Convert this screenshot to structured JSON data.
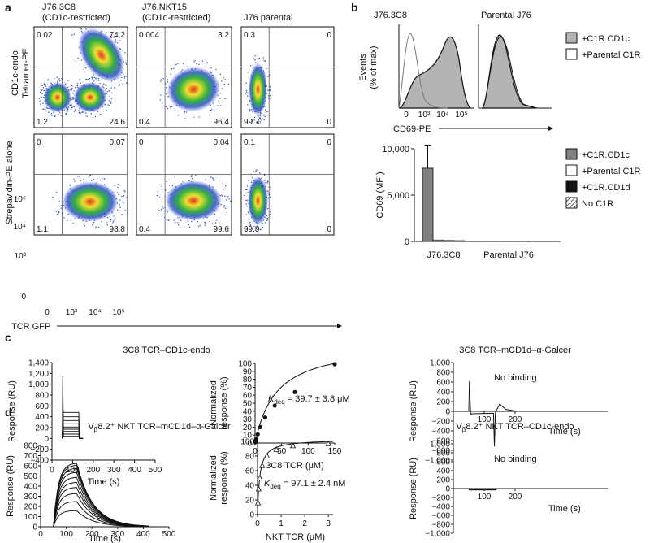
{
  "panels": {
    "a": {
      "letter": "a",
      "col_titles": [
        "J76.3C8",
        "(CD1c-restricted)",
        "J76.NKT15",
        "(CD1d-restricted)",
        "J76 parental"
      ],
      "row_labels": [
        "CD1c-endo",
        "Tetramer-PE",
        "Strepavidin-PE alone"
      ],
      "x_label": "TCR GFP",
      "quadrants": [
        {
          "ul": "0.02",
          "ur": "74.2",
          "ll": "1.2",
          "lr": "24.6"
        },
        {
          "ul": "0.004",
          "ur": "3.2",
          "ll": "0.4",
          "lr": "96.4"
        },
        {
          "ul": "0.3",
          "ur": "0",
          "ll": "99.7",
          "lr": "0"
        },
        {
          "ul": "0",
          "ur": "0.07",
          "ll": "1.1",
          "lr": "98.8"
        },
        {
          "ul": "0",
          "ur": "0.04",
          "ll": "0.4",
          "lr": "99.6"
        },
        {
          "ul": "0.1",
          "ur": "0",
          "ll": "99.9",
          "lr": "0"
        }
      ],
      "y_ticks": [
        "10⁵",
        "10⁴",
        "10³",
        "0"
      ],
      "x_ticks": [
        "0",
        "10³",
        "10⁴",
        "10⁵"
      ]
    },
    "b": {
      "letter": "b",
      "hist_titles": [
        "J76.3C8",
        "Parental J76"
      ],
      "hist_ylabel_1": "Events",
      "hist_ylabel_2": "(% of max)",
      "hist_xlabel": "CD69-PE",
      "hist_x_ticks": [
        "0",
        "10³",
        "10⁴",
        "10⁵"
      ],
      "hist_legend": [
        "+C1R.CD1c",
        "+Parental C1R"
      ],
      "bar_legend": [
        "+C1R.CD1c",
        "+Parental C1R",
        "+C1R.CD1d",
        "No C1R"
      ],
      "bar_ylabel": "CD69 (MFI)"
    },
    "c": {
      "letter": "c",
      "title_left": "3C8 TCR–CD1c-endo",
      "title_right": "3C8 TCR–mCD1d–α-Galcer",
      "no_binding": "No binding",
      "kd_label_main": "K",
      "kd_label_sub": "deq",
      "kd_value": " = 39.7 ± 3.8 μM"
    },
    "d": {
      "letter": "d",
      "title_left_pre": "V",
      "title_left_sub": "β",
      "title_left_post": "8.2⁺ NKT TCR–mCD1d–α-Galcer",
      "title_right_post": "8.2⁺ NKT TCR–CD1c-endo",
      "no_binding": "No binding",
      "kd_label_main": "K",
      "kd_label_sub": "deq",
      "kd_value": " = 97.1 ± 2.4 nM"
    }
  },
  "colors": {
    "bar_fill": "#808080",
    "hist_gray": "#b4b4b4",
    "density_low": "#3050c8",
    "density_mid": "#30b040",
    "density_high": "#f0e030",
    "density_peak": "#e03020"
  },
  "chart_data": [
    {
      "id": "b-bar",
      "type": "bar",
      "title": "",
      "ylabel": "CD69 (MFI)",
      "ylim": [
        0,
        10000
      ],
      "y_ticks": [
        0,
        5000,
        10000
      ],
      "y_tick_labels": [
        "0",
        "5,000",
        "10,000"
      ],
      "groups": [
        "J76.3C8",
        "Parental J76"
      ],
      "series": [
        {
          "name": "+C1R.CD1c",
          "values": [
            7900,
            50
          ]
        },
        {
          "name": "+Parental C1R",
          "values": [
            150,
            50
          ]
        },
        {
          "name": "+C1R.CD1d",
          "values": [
            100,
            50
          ]
        },
        {
          "name": "No C1R",
          "values": [
            80,
            50
          ]
        }
      ],
      "error": [
        2500,
        0
      ]
    },
    {
      "id": "c-sensorgram",
      "type": "line",
      "xlabel": "Time (s)",
      "ylabel": "Response (RU)",
      "xlim": [
        0,
        500
      ],
      "ylim": [
        -400,
        1400
      ],
      "x_ticks": [
        0,
        100,
        200,
        300,
        400,
        500
      ],
      "y_ticks": [
        -400,
        -200,
        0,
        200,
        400,
        600,
        800,
        1000,
        1200,
        1400
      ],
      "y_tick_labels": [
        "−400",
        "−200",
        "0",
        "200",
        "400",
        "600",
        "800",
        "1,000",
        "1,200",
        "1,400"
      ],
      "injection": [
        50,
        130
      ],
      "plateaus": [
        40,
        80,
        130,
        170,
        210,
        270,
        330,
        400,
        480
      ],
      "spike": 1150
    },
    {
      "id": "c-fit",
      "type": "scatter",
      "xlabel": "3C8 TCR (μM)",
      "ylabel": "Normalized response (%)",
      "xlim": [
        0,
        150
      ],
      "ylim": [
        0,
        100
      ],
      "x_ticks": [
        0,
        50,
        100,
        150
      ],
      "y_ticks": [
        0,
        10,
        20,
        30,
        40,
        50,
        60,
        70,
        80,
        90,
        100
      ],
      "x": [
        0.5,
        1,
        2,
        5,
        10,
        19,
        37,
        75,
        150
      ],
      "y": [
        1,
        3,
        5,
        11,
        20,
        32,
        47,
        64,
        99
      ],
      "kd": 39.7
    },
    {
      "id": "c-nobind",
      "type": "line",
      "xlabel": "Time (s)",
      "ylabel": "Response (RU)",
      "xlim": [
        0,
        500
      ],
      "ylim": [
        -1000,
        1000
      ],
      "x_ticks": [
        100,
        200
      ],
      "y_ticks": [
        -1000,
        -800,
        -600,
        -400,
        -200,
        0,
        200,
        400,
        600,
        800,
        1000
      ],
      "y_tick_labels": [
        "−1,000",
        "−800",
        "−600",
        "−400",
        "−200",
        "0",
        "200",
        "400",
        "600",
        "800",
        "1,000"
      ]
    },
    {
      "id": "d-sensorgram",
      "type": "line",
      "xlabel": "Time (s)",
      "ylabel": "Response (RU)",
      "xlim": [
        0,
        500
      ],
      "ylim": [
        0,
        800
      ],
      "x_ticks": [
        0,
        100,
        200,
        300,
        400,
        500
      ],
      "y_ticks": [
        0,
        100,
        200,
        300,
        400,
        500,
        600,
        700,
        800
      ],
      "injection": [
        50,
        140
      ],
      "plateaus": [
        160,
        250,
        330,
        390,
        440,
        490,
        540,
        580,
        610,
        630
      ]
    },
    {
      "id": "d-fit",
      "type": "scatter",
      "xlabel": "NKT TCR (μM)",
      "ylabel": "Normalized response (%)",
      "xlim": [
        0,
        3.2
      ],
      "ylim": [
        0,
        100
      ],
      "x_ticks": [
        0,
        1,
        2,
        3
      ],
      "y_ticks": [
        0,
        20,
        40,
        60,
        80,
        100
      ],
      "x": [
        0.02,
        0.05,
        0.1,
        0.2,
        0.4,
        0.8,
        1.5,
        3.0
      ],
      "y": [
        16,
        35,
        50,
        67,
        80,
        89,
        94,
        97
      ],
      "kd": 0.0971
    },
    {
      "id": "d-nobind",
      "type": "line",
      "xlabel": "Time (s)",
      "ylabel": "Response (RU)",
      "xlim": [
        0,
        500
      ],
      "ylim": [
        -1000,
        1000
      ],
      "x_ticks": [
        100,
        200
      ],
      "y_ticks": [
        -1000,
        -800,
        -600,
        -400,
        -200,
        0,
        200,
        400,
        600,
        800,
        1000
      ],
      "y_tick_labels": [
        "−1,000",
        "−800",
        "−600",
        "−400",
        "−200",
        "0",
        "200",
        "400",
        "600",
        "800",
        "1,000"
      ]
    }
  ]
}
